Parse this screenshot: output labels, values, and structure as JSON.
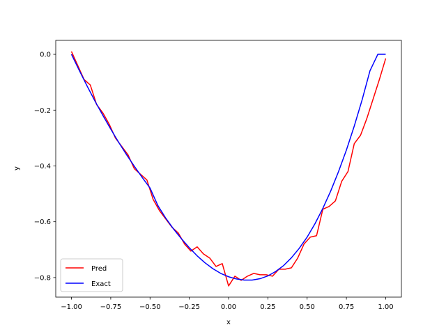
{
  "chart_data": {
    "type": "line",
    "title": "",
    "xlabel": "x",
    "ylabel": "y",
    "xlim": [
      -1.1,
      1.1
    ],
    "ylim": [
      -0.87,
      0.05
    ],
    "xticks": [
      -1.0,
      -0.75,
      -0.5,
      -0.25,
      0.0,
      0.25,
      0.5,
      0.75,
      1.0
    ],
    "xtick_labels": [
      "−1.00",
      "−0.75",
      "−0.50",
      "−0.25",
      "0.00",
      "0.25",
      "0.50",
      "0.75",
      "1.00"
    ],
    "yticks": [
      0.0,
      -0.2,
      -0.4,
      -0.6,
      -0.8
    ],
    "ytick_labels": [
      "0.0",
      "−0.2",
      "−0.4",
      "−0.6",
      "−0.8"
    ],
    "grid": false,
    "legend_position": "lower-left",
    "series": [
      {
        "name": "Pred",
        "color": "#ff0000",
        "x": [
          -1.0,
          -0.96,
          -0.92,
          -0.88,
          -0.84,
          -0.8,
          -0.76,
          -0.72,
          -0.68,
          -0.64,
          -0.6,
          -0.56,
          -0.52,
          -0.48,
          -0.44,
          -0.4,
          -0.36,
          -0.32,
          -0.28,
          -0.24,
          -0.2,
          -0.16,
          -0.12,
          -0.08,
          -0.04,
          0.0,
          0.04,
          0.08,
          0.12,
          0.16,
          0.2,
          0.24,
          0.28,
          0.32,
          0.36,
          0.4,
          0.44,
          0.48,
          0.52,
          0.56,
          0.6,
          0.64,
          0.68,
          0.72,
          0.76,
          0.8,
          0.84,
          0.88,
          0.92,
          0.96,
          1.0
        ],
        "y": [
          0.01,
          -0.04,
          -0.09,
          -0.11,
          -0.18,
          -0.21,
          -0.25,
          -0.3,
          -0.33,
          -0.36,
          -0.41,
          -0.43,
          -0.45,
          -0.52,
          -0.56,
          -0.59,
          -0.62,
          -0.64,
          -0.68,
          -0.705,
          -0.69,
          -0.715,
          -0.73,
          -0.76,
          -0.75,
          -0.83,
          -0.795,
          -0.81,
          -0.795,
          -0.785,
          -0.79,
          -0.79,
          -0.795,
          -0.77,
          -0.77,
          -0.765,
          -0.73,
          -0.68,
          -0.655,
          -0.65,
          -0.555,
          -0.545,
          -0.525,
          -0.455,
          -0.42,
          -0.32,
          -0.29,
          -0.23,
          -0.16,
          -0.09,
          -0.015
        ]
      },
      {
        "name": "Exact",
        "color": "#0000ff",
        "x": [
          -1.0,
          -0.95,
          -0.9,
          -0.85,
          -0.8,
          -0.75,
          -0.7,
          -0.65,
          -0.6,
          -0.55,
          -0.5,
          -0.45,
          -0.4,
          -0.35,
          -0.3,
          -0.25,
          -0.2,
          -0.15,
          -0.1,
          -0.05,
          0.0,
          0.05,
          0.1,
          0.15,
          0.2,
          0.25,
          0.3,
          0.35,
          0.4,
          0.45,
          0.5,
          0.55,
          0.6,
          0.65,
          0.7,
          0.75,
          0.8,
          0.85,
          0.9,
          0.95,
          1.0
        ],
        "y": [
          0.0,
          -0.058,
          -0.114,
          -0.168,
          -0.219,
          -0.268,
          -0.315,
          -0.359,
          -0.401,
          -0.441,
          -0.479,
          -0.542,
          -0.587,
          -0.626,
          -0.661,
          -0.693,
          -0.722,
          -0.747,
          -0.768,
          -0.785,
          -0.797,
          -0.805,
          -0.809,
          -0.809,
          -0.804,
          -0.794,
          -0.778,
          -0.757,
          -0.729,
          -0.695,
          -0.655,
          -0.607,
          -0.552,
          -0.49,
          -0.42,
          -0.343,
          -0.257,
          -0.163,
          -0.059,
          0.0,
          0.0
        ]
      }
    ]
  }
}
